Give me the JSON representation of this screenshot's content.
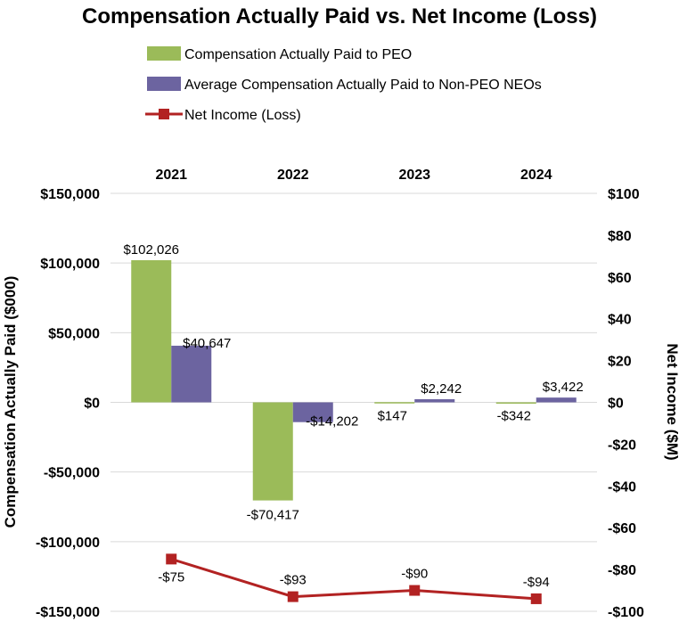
{
  "chart_data": {
    "type": "bar",
    "title": "Compensation Actually Paid vs. Net Income (Loss)",
    "categories": [
      "2021",
      "2022",
      "2023",
      "2024"
    ],
    "ylabel": "Compensation Actually Paid ($000)",
    "ylabel_right": "Net Income ($M)",
    "ylim": [
      -150000,
      150000
    ],
    "ylim_right": [
      -100,
      100
    ],
    "y_ticks": [
      150000,
      100000,
      50000,
      0,
      -50000,
      -100000,
      -150000
    ],
    "y_tick_labels": [
      "$150,000",
      "$100,000",
      "$50,000",
      "$0",
      "-$50,000",
      "-$100,000",
      "-$150,000"
    ],
    "y_right_ticks": [
      100,
      80,
      60,
      40,
      20,
      0,
      -20,
      -40,
      -60,
      -80,
      -100
    ],
    "y_right_tick_labels": [
      "$100",
      "$80",
      "$60",
      "$40",
      "$20",
      "$0",
      "-$20",
      "-$40",
      "-$60",
      "-$80",
      "-$100"
    ],
    "grid": true,
    "legend_position": "top",
    "series": [
      {
        "name": "Compensation Actually Paid to PEO",
        "type": "bar",
        "axis": "left",
        "color": "#9bbb59",
        "values": [
          102026,
          -70417,
          147,
          -342
        ],
        "labels": [
          "$102,026",
          "-$70,417",
          "$147",
          "-$342"
        ]
      },
      {
        "name": "Average Compensation Actually Paid to Non-PEO NEOs",
        "type": "bar",
        "axis": "left",
        "color": "#6c64a0",
        "values": [
          40647,
          -14202,
          2242,
          3422
        ],
        "labels": [
          "$40,647",
          "-$14,202",
          "$2,242",
          "$3,422"
        ]
      },
      {
        "name": "Net Income (Loss)",
        "type": "line",
        "axis": "right",
        "color": "#b22222",
        "values": [
          -75,
          -93,
          -90,
          -94
        ],
        "labels": [
          "-$75",
          "-$93",
          "-$90",
          "-$94"
        ]
      }
    ]
  }
}
